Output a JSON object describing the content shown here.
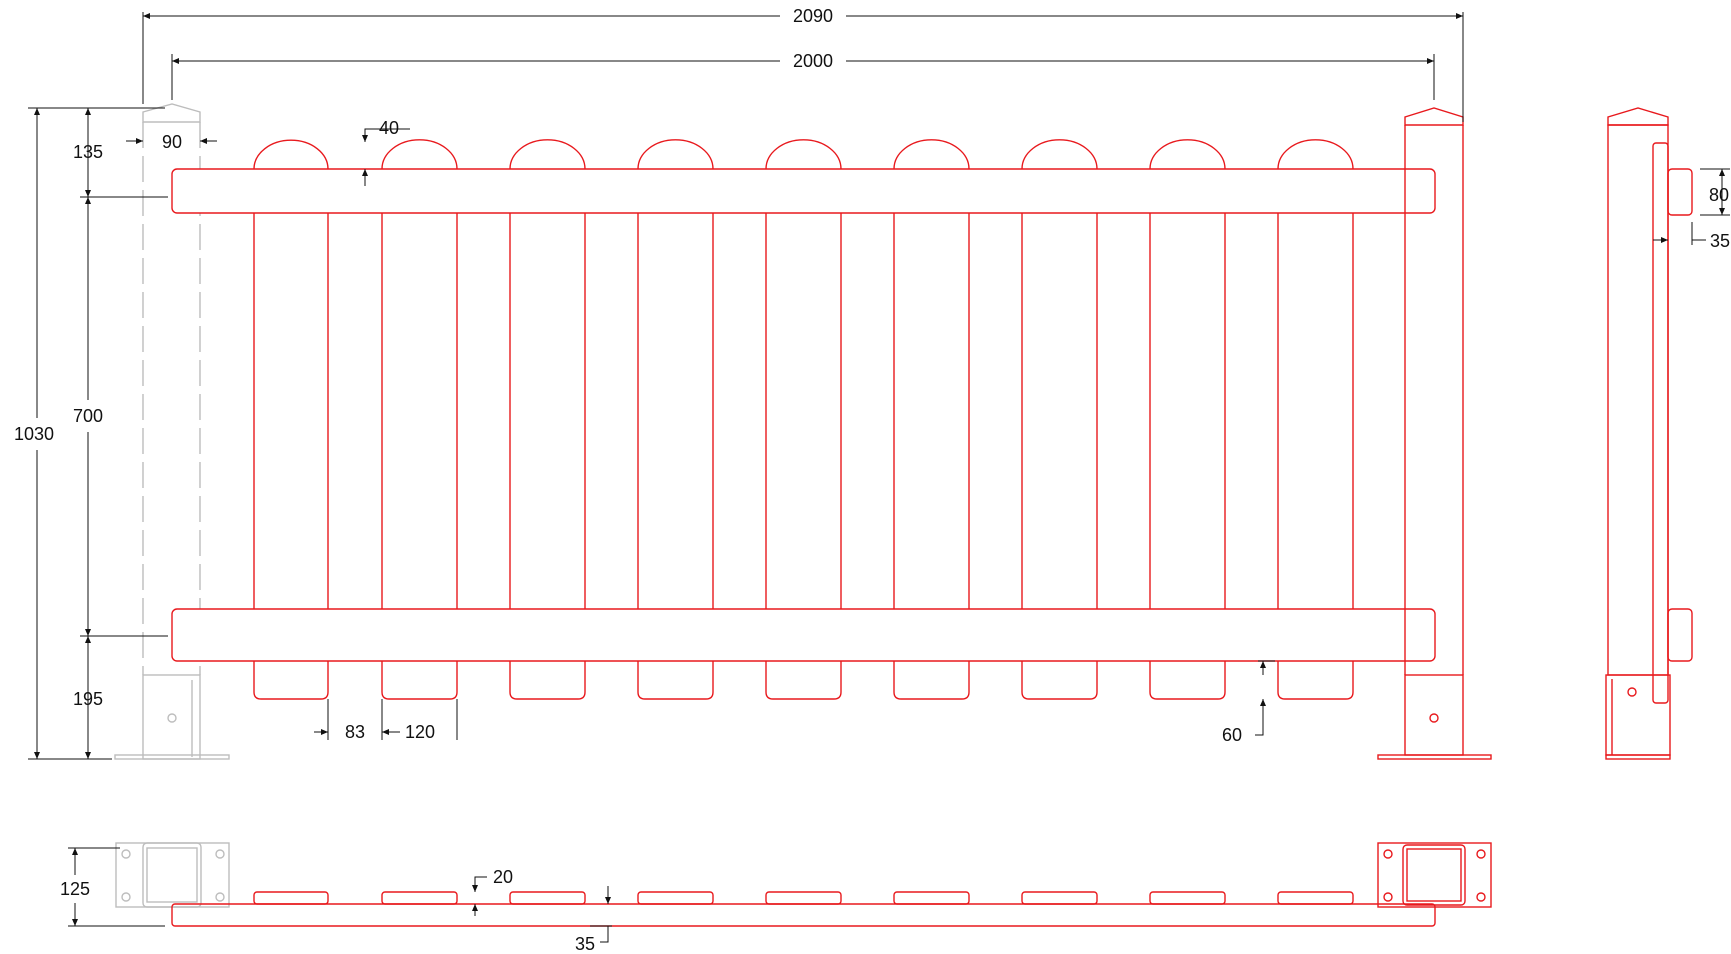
{
  "colors": {
    "panel": "#e8191d",
    "post_ghost": "#bdbdbd",
    "dimension": "#111111",
    "background": "#ffffff"
  },
  "dimensions": {
    "overall_width": "2090",
    "panel_width": "2000",
    "total_height": "1030",
    "post_cap_height": "135",
    "post_width": "90",
    "picket_cap_rise": "40",
    "rail_spacing": "700",
    "bottom_clearance": "195",
    "picket_gap": "83",
    "picket_width": "120",
    "picket_projection": "60",
    "side_rail_height": "80",
    "side_rail_depth": "35",
    "plan_post_depth": "125",
    "plan_picket_thickness": "20",
    "plan_rail_thickness": "35"
  }
}
